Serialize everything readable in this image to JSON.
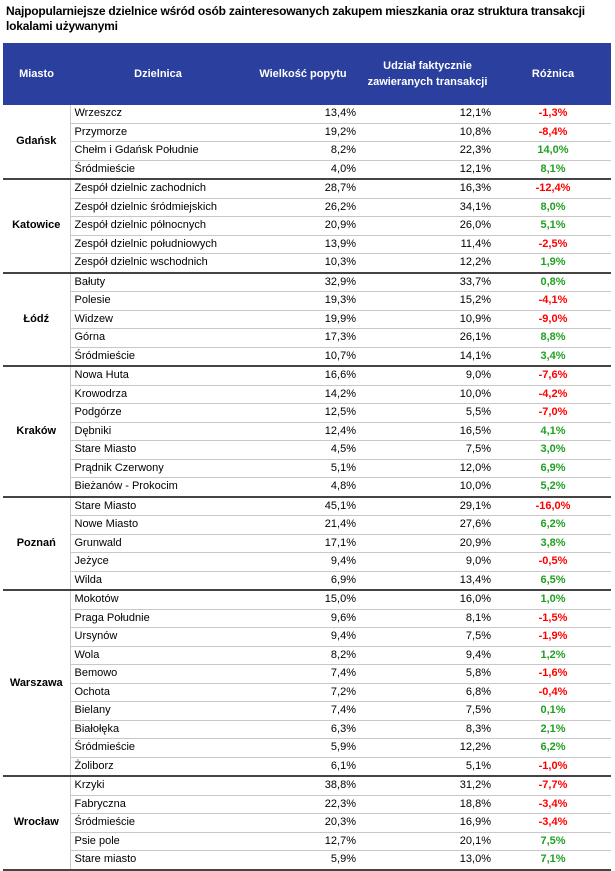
{
  "title": "Najpopularniejsze dzielnice wśród osób zainteresowanych zakupem mieszkania oraz struktura transakcji lokalami używanymi",
  "headers": {
    "city": "Miasto",
    "district": "Dzielnica",
    "demand": "Wielkość popytu",
    "share": "Udział faktycznie zawieranych transakcji",
    "diff": "Różnica"
  },
  "colors": {
    "header_bg": "#2b3f9e",
    "negative": "#ff0000",
    "positive": "#22a022"
  },
  "groups": [
    {
      "city": "Gdańsk",
      "rows": [
        [
          "Wrzeszcz",
          "13,4%",
          "12,1%",
          "-1,3%"
        ],
        [
          "Przymorze",
          "19,2%",
          "10,8%",
          "-8,4%"
        ],
        [
          "Chełm i Gdańsk Południe",
          "8,2%",
          "22,3%",
          "14,0%"
        ],
        [
          "Śródmieście",
          "4,0%",
          "12,1%",
          "8,1%"
        ]
      ]
    },
    {
      "city": "Katowice",
      "rows": [
        [
          "Zespół dzielnic zachodnich",
          "28,7%",
          "16,3%",
          "-12,4%"
        ],
        [
          "Zespół dzielnic śródmiejskich",
          "26,2%",
          "34,1%",
          "8,0%"
        ],
        [
          "Zespół dzielnic północnych",
          "20,9%",
          "26,0%",
          "5,1%"
        ],
        [
          "Zespół dzielnic południowych",
          "13,9%",
          "11,4%",
          "-2,5%"
        ],
        [
          "Zespół dzielnic wschodnich",
          "10,3%",
          "12,2%",
          "1,9%"
        ]
      ]
    },
    {
      "city": "Łódź",
      "rows": [
        [
          "Bałuty",
          "32,9%",
          "33,7%",
          "0,8%"
        ],
        [
          "Polesie",
          "19,3%",
          "15,2%",
          "-4,1%"
        ],
        [
          "Widzew",
          "19,9%",
          "10,9%",
          "-9,0%"
        ],
        [
          "Górna",
          "17,3%",
          "26,1%",
          "8,8%"
        ],
        [
          "Śródmieście",
          "10,7%",
          "14,1%",
          "3,4%"
        ]
      ]
    },
    {
      "city": "Kraków",
      "rows": [
        [
          "Nowa Huta",
          "16,6%",
          "9,0%",
          "-7,6%"
        ],
        [
          "Krowodrza",
          "14,2%",
          "10,0%",
          "-4,2%"
        ],
        [
          "Podgórze",
          "12,5%",
          "5,5%",
          "-7,0%"
        ],
        [
          "Dębniki",
          "12,4%",
          "16,5%",
          "4,1%"
        ],
        [
          "Stare Miasto",
          "4,5%",
          "7,5%",
          "3,0%"
        ],
        [
          "Prądnik Czerwony",
          "5,1%",
          "12,0%",
          "6,9%"
        ],
        [
          "Bieżanów - Prokocim",
          "4,8%",
          "10,0%",
          "5,2%"
        ]
      ]
    },
    {
      "city": "Poznań",
      "rows": [
        [
          "Stare Miasto",
          "45,1%",
          "29,1%",
          "-16,0%"
        ],
        [
          "Nowe Miasto",
          "21,4%",
          "27,6%",
          "6,2%"
        ],
        [
          "Grunwald",
          "17,1%",
          "20,9%",
          "3,8%"
        ],
        [
          "Jeżyce",
          "9,4%",
          "9,0%",
          "-0,5%"
        ],
        [
          "Wilda",
          "6,9%",
          "13,4%",
          "6,5%"
        ]
      ]
    },
    {
      "city": "Warszawa",
      "rows": [
        [
          "Mokotów",
          "15,0%",
          "16,0%",
          "1,0%"
        ],
        [
          "Praga Południe",
          "9,6%",
          "8,1%",
          "-1,5%"
        ],
        [
          "Ursynów",
          "9,4%",
          "7,5%",
          "-1,9%"
        ],
        [
          "Wola",
          "8,2%",
          "9,4%",
          "1,2%"
        ],
        [
          "Bemowo",
          "7,4%",
          "5,8%",
          "-1,6%"
        ],
        [
          "Ochota",
          "7,2%",
          "6,8%",
          "-0,4%"
        ],
        [
          "Bielany",
          "7,4%",
          "7,5%",
          "0,1%"
        ],
        [
          "Białołęka",
          "6,3%",
          "8,3%",
          "2,1%"
        ],
        [
          "Śródmieście",
          "5,9%",
          "12,2%",
          "6,2%"
        ],
        [
          "Żoliborz",
          "6,1%",
          "5,1%",
          "-1,0%"
        ]
      ]
    },
    {
      "city": "Wrocław",
      "rows": [
        [
          "Krzyki",
          "38,8%",
          "31,2%",
          "-7,7%"
        ],
        [
          "Fabryczna",
          "22,3%",
          "18,8%",
          "-3,4%"
        ],
        [
          "Śródmieście",
          "20,3%",
          "16,9%",
          "-3,4%"
        ],
        [
          "Psie pole",
          "12,7%",
          "20,1%",
          "7,5%"
        ],
        [
          "Stare miasto",
          "5,9%",
          "13,0%",
          "7,1%"
        ]
      ]
    }
  ]
}
